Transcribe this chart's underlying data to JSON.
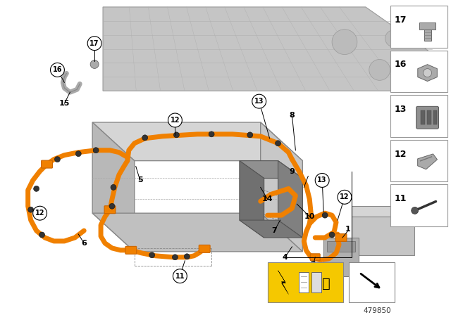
{
  "bg_color": "#ffffff",
  "orange_color": "#F08000",
  "dark_gray": "#555555",
  "light_gray": "#d8d8d8",
  "medium_gray": "#aaaaaa",
  "panel_gray": "#c8c8c8",
  "border_color": "#888888",
  "diagram_num": "479850",
  "warning_yellow": "#F5C800",
  "floor_color": "#cccccc",
  "battery_top": "#d2d2d2",
  "battery_side": "#b5b5b5",
  "battery_front": "#c0c0c0"
}
